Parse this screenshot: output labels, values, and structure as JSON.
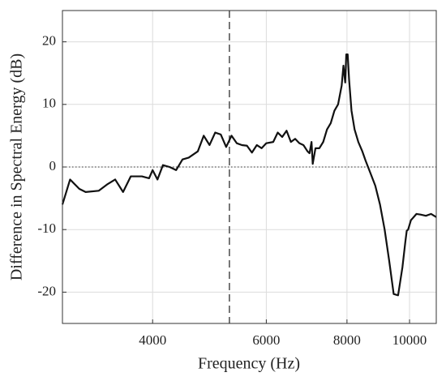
{
  "chart_data": {
    "type": "line",
    "x_label": "Frequency (Hz)",
    "y_label": "Difference in Spectral Energy (dB)",
    "xscale": "log",
    "xlim": [
      2900,
      11000
    ],
    "ylim": [
      -25,
      25
    ],
    "xticks": [
      4000,
      6000,
      8000,
      10000
    ],
    "yticks": [
      -20,
      -10,
      0,
      10,
      20
    ],
    "grid": true,
    "vline": 5260,
    "hline": 0,
    "series": [
      {
        "color": "#111111",
        "x": [
          2900,
          2980,
          3080,
          3150,
          3300,
          3400,
          3500,
          3600,
          3700,
          3850,
          3950,
          4000,
          4070,
          4150,
          4250,
          4350,
          4450,
          4550,
          4700,
          4800,
          4900,
          5000,
          5100,
          5200,
          5300,
          5400,
          5500,
          5600,
          5700,
          5800,
          5900,
          6000,
          6150,
          6250,
          6350,
          6450,
          6550,
          6650,
          6750,
          6850,
          6950,
          7000,
          7050,
          7080,
          7150,
          7250,
          7350,
          7450,
          7550,
          7650,
          7750,
          7850,
          7900,
          7950,
          7980,
          8020,
          8060,
          8130,
          8220,
          8330,
          8450,
          8550,
          8700,
          8850,
          9000,
          9150,
          9300,
          9450,
          9600,
          9750,
          9850,
          9900,
          9950,
          10050,
          10150,
          10250,
          10400,
          10600,
          10800,
          11000
        ],
        "values": [
          -6,
          -2,
          -3.5,
          -4,
          -3.8,
          -2.8,
          -2,
          -4,
          -1.5,
          -1.5,
          -1.8,
          -0.5,
          -2,
          0.3,
          0,
          -0.5,
          1.2,
          1.5,
          2.5,
          5,
          3.5,
          5.5,
          5.2,
          3.2,
          5,
          3.8,
          3.5,
          3.4,
          2.3,
          3.5,
          3,
          3.8,
          4,
          5.5,
          4.8,
          5.8,
          4,
          4.5,
          3.8,
          3.5,
          2.5,
          2.2,
          4,
          0.5,
          3,
          3,
          4,
          6,
          7,
          9,
          10,
          13,
          16.2,
          13.5,
          18,
          18,
          14,
          9,
          6,
          4,
          2.5,
          1,
          -1,
          -3,
          -6,
          -10,
          -15,
          -20.3,
          -20.5,
          -16,
          -12,
          -10.2,
          -10,
          -8.5,
          -8,
          -7.5,
          -7.6,
          -7.8,
          -7.5,
          -8
        ]
      }
    ]
  }
}
